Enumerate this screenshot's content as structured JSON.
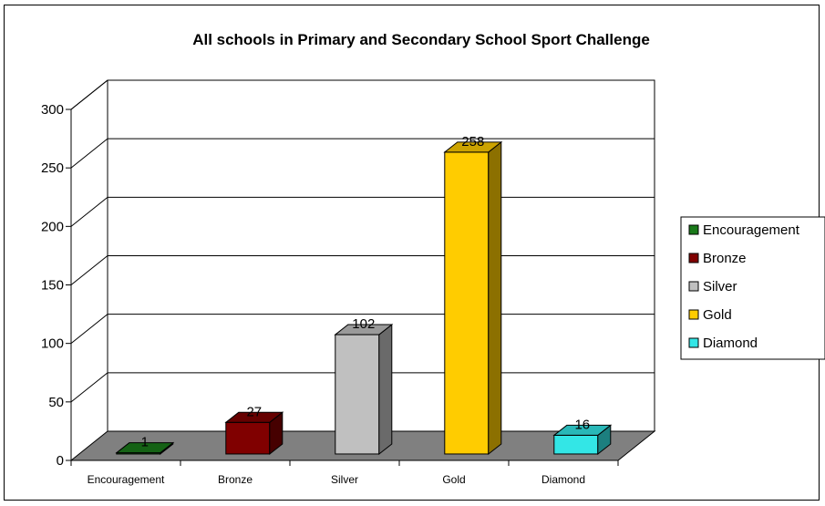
{
  "chart_data": {
    "type": "bar",
    "title": "All schools in Primary and Secondary School Sport Challenge",
    "categories": [
      "Encouragement",
      "Bronze",
      "Silver",
      "Gold",
      "Diamond"
    ],
    "values": [
      1,
      27,
      102,
      258,
      16
    ],
    "colors": [
      "#1a7a1a",
      "#800000",
      "#c0c0c0",
      "#ffcc00",
      "#33e6e6"
    ],
    "ylim": [
      0,
      300
    ],
    "yticks": [
      0,
      50,
      100,
      150,
      200,
      250,
      300
    ],
    "grid": true,
    "legend": "right",
    "legend_entries": [
      "Encouragement",
      "Bronze",
      "Silver",
      "Gold",
      "Diamond"
    ]
  }
}
